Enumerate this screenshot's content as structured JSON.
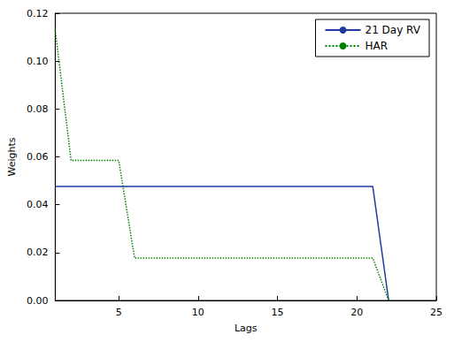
{
  "chart_data": {
    "type": "line",
    "x_label": "Lags",
    "y_label": "Weights",
    "xlim": [
      1,
      25
    ],
    "xticks": [
      5,
      10,
      15,
      20,
      25
    ],
    "ylim": [
      0,
      0.12
    ],
    "yticks": [
      {
        "value": 0,
        "label": "0.00"
      },
      {
        "value": 0.02,
        "label": "0.02"
      },
      {
        "value": 0.04,
        "label": "0.04"
      },
      {
        "value": 0.06,
        "label": "0.06"
      },
      {
        "value": 0.08,
        "label": "0.08"
      },
      {
        "value": 0.1,
        "label": "0.10"
      },
      {
        "value": 0.12,
        "label": "0.12"
      }
    ],
    "grid": false,
    "legend": "upper right",
    "x": [
      1,
      2,
      3,
      4,
      5,
      6,
      7,
      8,
      9,
      10,
      11,
      12,
      13,
      14,
      15,
      16,
      17,
      18,
      19,
      20,
      21,
      22
    ],
    "series": [
      {
        "name": "21 Day RV",
        "color": "#1f3aa0",
        "line_style": "solid",
        "marker": "none",
        "values": [
          0.0476,
          0.0476,
          0.0476,
          0.0476,
          0.0476,
          0.0476,
          0.0476,
          0.0476,
          0.0476,
          0.0476,
          0.0476,
          0.0476,
          0.0476,
          0.0476,
          0.0476,
          0.0476,
          0.0476,
          0.0476,
          0.0476,
          0.0476,
          0.0476,
          0
        ]
      },
      {
        "name": "HAR",
        "color": "#008000",
        "line_style": "dotted",
        "marker": "none",
        "values": [
          0.113,
          0.0585,
          0.0585,
          0.0585,
          0.0585,
          0.0177,
          0.0177,
          0.0177,
          0.0177,
          0.0177,
          0.0177,
          0.0177,
          0.0177,
          0.0177,
          0.0177,
          0.0177,
          0.0177,
          0.0177,
          0.0177,
          0.0177,
          0.0177,
          0
        ]
      }
    ]
  }
}
